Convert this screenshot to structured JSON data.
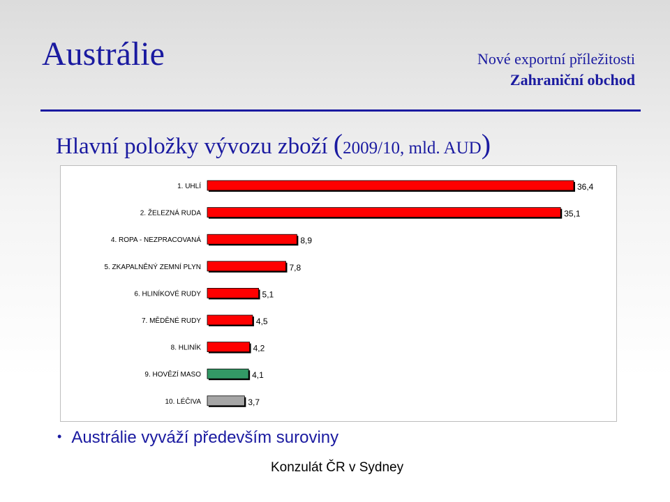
{
  "header": {
    "title": "Austrálie",
    "subtitle_line1": "Nové exportní příležitosti",
    "subtitle_line2": "Zahraniční obchod"
  },
  "heading": {
    "open_paren": "(",
    "main": "Hlavní položky vývozu zboží ",
    "detail": "2009/10, mld. AUD",
    "close_paren": ")"
  },
  "chart_data": {
    "type": "bar",
    "orientation": "horizontal",
    "categories": [
      "1.  UHLÍ",
      "2.  ŽELEZNÁ RUDA",
      "4.  ROPA - NEZPRACOVANÁ",
      "5.  ZKAPALNĚNÝ ZEMNÍ PLYN",
      "6.  HLINÍKOVÉ RUDY",
      "7.  MĚDĚNÉ RUDY",
      "8.  HLINÍK",
      "9.  HOVĚZÍ MASO",
      "10.  LÉČIVA"
    ],
    "values": [
      36.4,
      35.1,
      8.9,
      7.8,
      5.1,
      4.5,
      4.2,
      4.1,
      3.7
    ],
    "value_labels": [
      "36,4",
      "35,1",
      "8,9",
      "7,8",
      "5,1",
      "4,5",
      "4,2",
      "4,1",
      "3,7"
    ],
    "colors": [
      "#ff0000",
      "#ff0000",
      "#ff0000",
      "#ff0000",
      "#ff0000",
      "#ff0000",
      "#ff0000",
      "#339966",
      "#a6a6a6"
    ],
    "xlim": [
      0,
      36.4
    ],
    "grid": false,
    "legend": "none"
  },
  "bullet": {
    "symbol": "•",
    "text": "Austrálie vyváží především suroviny"
  },
  "footer": {
    "text": "Konzulát ČR v Sydney"
  }
}
